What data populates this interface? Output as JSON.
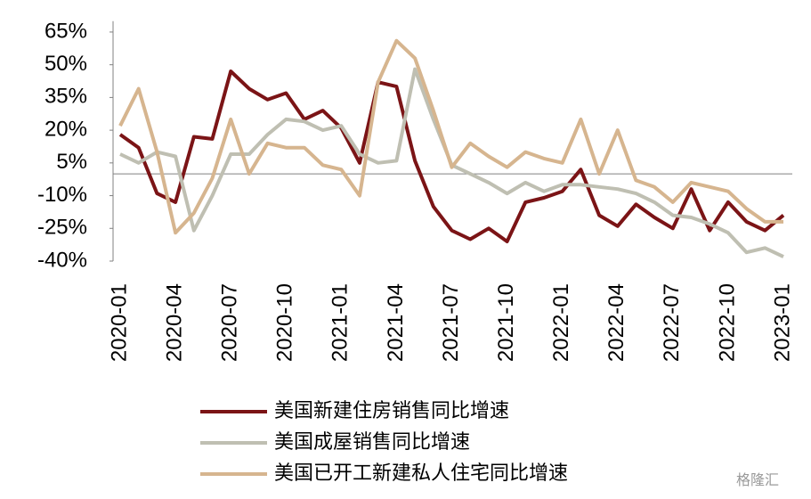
{
  "chart_data": {
    "type": "line",
    "categories": [
      "2020-01",
      null,
      null,
      "2020-04",
      null,
      null,
      "2020-07",
      null,
      null,
      "2020-10",
      null,
      null,
      "2021-01",
      null,
      null,
      "2021-04",
      null,
      null,
      "2021-07",
      null,
      null,
      "2021-10",
      null,
      null,
      "2022-01",
      null,
      null,
      "2022-04",
      null,
      null,
      "2022-07",
      null,
      null,
      "2022-10",
      null,
      null,
      "2023-01"
    ],
    "series": [
      {
        "name": "美国新建住房销售同比增速",
        "color": "#7b1416",
        "values": [
          18,
          12,
          -9,
          -13,
          17,
          16,
          47,
          39,
          34,
          37,
          25,
          29,
          21,
          5,
          42,
          40,
          6,
          -15,
          -26,
          -30,
          -25,
          -31,
          -13,
          -11,
          -8,
          2,
          -19,
          -24,
          -14,
          -20,
          -25,
          -7,
          -26,
          -13,
          -22,
          -26,
          -19
        ]
      },
      {
        "name": "美国成屋销售同比增速",
        "color": "#bfbfb2",
        "values": [
          9,
          5,
          10,
          8,
          -26,
          -10,
          9,
          9,
          18,
          25,
          24,
          20,
          22,
          9,
          5,
          6,
          48,
          25,
          4,
          0,
          -4,
          -9,
          -4,
          -8,
          -5,
          -5,
          -6,
          -7,
          -9,
          -13,
          -19,
          -20,
          -23,
          -27,
          -36,
          -34,
          -38
        ]
      },
      {
        "name": "美国已开工新建私人住宅同比增速",
        "color": "#d6b58f",
        "values": [
          22,
          39,
          10,
          -27,
          -18,
          -2,
          25,
          0,
          14,
          12,
          12,
          4,
          2,
          -10,
          42,
          61,
          53,
          29,
          3,
          14,
          8,
          3,
          10,
          7,
          5,
          25,
          0,
          20,
          -3,
          -6,
          -13,
          -4,
          -6,
          -8,
          -16,
          -22,
          -22
        ]
      }
    ],
    "ylim": [
      -40,
      70
    ],
    "yticks": [
      {
        "value": -40,
        "label": "-40%"
      },
      {
        "value": -25,
        "label": "-25%"
      },
      {
        "value": -10,
        "label": "-10%"
      },
      {
        "value": 5,
        "label": "5%"
      },
      {
        "value": 20,
        "label": "20%"
      },
      {
        "value": 35,
        "label": "35%"
      },
      {
        "value": 50,
        "label": "50%"
      },
      {
        "value": 65,
        "label": "65%"
      }
    ],
    "legend": "bottom",
    "watermark": "格隆汇"
  }
}
